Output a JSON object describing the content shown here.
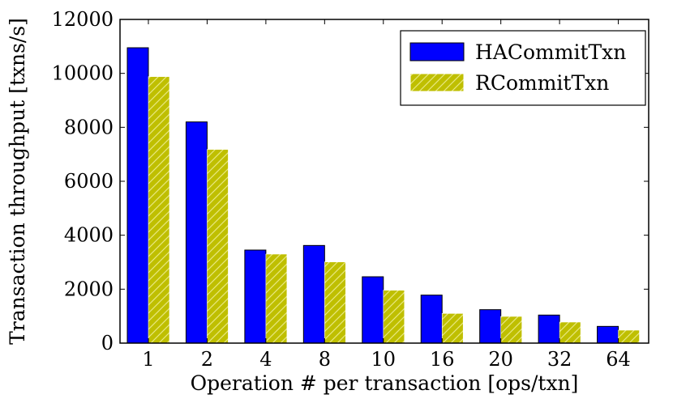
{
  "chart_data": {
    "type": "bar",
    "categories": [
      "1",
      "2",
      "4",
      "8",
      "10",
      "16",
      "20",
      "32",
      "64"
    ],
    "series": [
      {
        "name": "HACommitTxn",
        "values": [
          10950,
          8200,
          3450,
          3620,
          2460,
          1780,
          1240,
          1040,
          620
        ],
        "color": "#0000ff",
        "hatch": false
      },
      {
        "name": "RCommitTxn",
        "values": [
          9880,
          7180,
          3300,
          3010,
          1960,
          1100,
          990,
          780,
          480
        ],
        "color": "#bfbf00",
        "hatch": true
      }
    ],
    "title": "",
    "xlabel": "Operation # per transaction [ops/txn]",
    "ylabel": "Transaction throughput [txns/s]",
    "ylim": [
      0,
      12000
    ],
    "yticks": [
      0,
      2000,
      4000,
      6000,
      8000,
      10000,
      12000
    ],
    "grid": false,
    "legend_position": "top-right"
  }
}
